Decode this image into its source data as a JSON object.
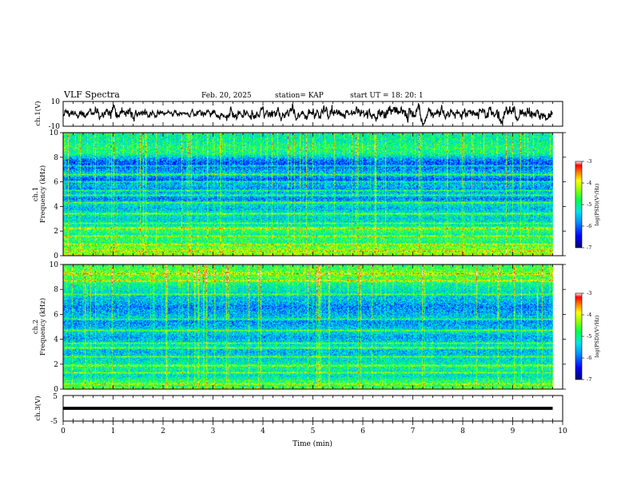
{
  "header": {
    "title": "VLF Spectra",
    "date": "Feb. 20, 2025",
    "station": "station= KAP",
    "start": "start  UT =   18: 20: 1"
  },
  "chart_data": [
    {
      "type": "line",
      "name": "ch1-waveform",
      "ylabel": "ch.1(V)",
      "ylim": [
        -10,
        10
      ],
      "yticks": [
        "10",
        "-10"
      ],
      "xlim": [
        0,
        10
      ],
      "amplitude_envelope": [
        [
          0.0,
          2.5
        ],
        [
          0.5,
          3.5
        ],
        [
          1.0,
          5.5
        ],
        [
          1.5,
          4.0
        ],
        [
          2.0,
          2.0
        ],
        [
          2.5,
          2.5
        ],
        [
          3.0,
          3.0
        ],
        [
          3.5,
          4.5
        ],
        [
          4.0,
          4.0
        ],
        [
          4.5,
          5.0
        ],
        [
          5.0,
          4.5
        ],
        [
          5.5,
          5.0
        ],
        [
          6.0,
          4.0
        ],
        [
          6.5,
          5.0
        ],
        [
          7.0,
          5.5
        ],
        [
          7.5,
          4.5
        ],
        [
          8.0,
          4.0
        ],
        [
          8.5,
          5.0
        ],
        [
          9.0,
          4.5
        ],
        [
          9.5,
          5.0
        ],
        [
          9.8,
          4.0
        ]
      ]
    },
    {
      "type": "heatmap",
      "name": "ch1-spectrogram",
      "ylabel_top": "ch.1",
      "ylabel": "Frequency (kHz)",
      "ylim": [
        0,
        10
      ],
      "yticks": [
        "0",
        "2",
        "4",
        "6",
        "8",
        "10"
      ],
      "xlim": [
        0,
        10
      ],
      "data_extent_x": [
        0,
        9.8
      ],
      "colorscale": [
        "#00007f",
        "#0000ff",
        "#00b4ff",
        "#00ffcf",
        "#00ff00",
        "#ffff00",
        "#ff8000",
        "#ff0000",
        "#ffffff"
      ],
      "colorbar": {
        "label": "log(PSD)(V²/Hz)",
        "ticks": [
          "-3",
          "-4",
          "-5",
          "-6",
          "-7"
        ],
        "range": [
          -7,
          -3
        ]
      },
      "frequency_profile": [
        [
          0.0,
          -4.2
        ],
        [
          0.3,
          -4.6
        ],
        [
          0.6,
          -4.4
        ],
        [
          1.0,
          -5.0
        ],
        [
          1.3,
          -4.8
        ],
        [
          1.7,
          -5.1
        ],
        [
          2.1,
          -4.7
        ],
        [
          2.5,
          -5.3
        ],
        [
          3.0,
          -5.4
        ],
        [
          3.4,
          -5.2
        ],
        [
          3.8,
          -5.6
        ],
        [
          4.2,
          -5.3
        ],
        [
          4.6,
          -5.9
        ],
        [
          5.0,
          -5.5
        ],
        [
          5.4,
          -5.8
        ],
        [
          5.8,
          -5.6
        ],
        [
          6.2,
          -6.1
        ],
        [
          6.6,
          -5.5
        ],
        [
          7.0,
          -5.8
        ],
        [
          7.4,
          -6.2
        ],
        [
          7.8,
          -5.9
        ],
        [
          8.3,
          -5.0
        ],
        [
          8.8,
          -4.9
        ],
        [
          9.3,
          -5.1
        ],
        [
          10.0,
          -5.1
        ]
      ],
      "line_frequencies": [
        0.3,
        0.9,
        1.6,
        2.2,
        2.6,
        3.4,
        4.3,
        4.9,
        5.3,
        6.0,
        6.6,
        7.3
      ]
    },
    {
      "type": "heatmap",
      "name": "ch2-spectrogram",
      "ylabel_top": "ch.2",
      "ylabel": "Frequency (kHz)",
      "ylim": [
        0,
        10
      ],
      "yticks": [
        "0",
        "2",
        "4",
        "6",
        "8",
        "10"
      ],
      "xlim": [
        0,
        10
      ],
      "data_extent_x": [
        0,
        9.8
      ],
      "colorscale": [
        "#00007f",
        "#0000ff",
        "#00b4ff",
        "#00ffcf",
        "#00ff00",
        "#ffff00",
        "#ff8000",
        "#ff0000",
        "#ffffff"
      ],
      "colorbar": {
        "label": "log(PSD)(V²/Hz)",
        "ticks": [
          "-3",
          "-4",
          "-5",
          "-6",
          "-7"
        ],
        "range": [
          -7,
          -3
        ]
      },
      "frequency_profile": [
        [
          0.0,
          -4.5
        ],
        [
          0.3,
          -4.9
        ],
        [
          0.6,
          -4.8
        ],
        [
          1.0,
          -5.3
        ],
        [
          1.4,
          -5.2
        ],
        [
          1.8,
          -5.0
        ],
        [
          2.2,
          -5.3
        ],
        [
          2.6,
          -5.4
        ],
        [
          3.0,
          -5.6
        ],
        [
          3.4,
          -5.2
        ],
        [
          3.8,
          -5.5
        ],
        [
          4.2,
          -5.7
        ],
        [
          4.6,
          -5.3
        ],
        [
          5.0,
          -5.6
        ],
        [
          5.4,
          -5.8
        ],
        [
          5.8,
          -5.5
        ],
        [
          6.2,
          -5.7
        ],
        [
          6.6,
          -5.9
        ],
        [
          7.0,
          -5.6
        ],
        [
          7.4,
          -5.5
        ],
        [
          7.8,
          -5.3
        ],
        [
          8.3,
          -5.1
        ],
        [
          8.8,
          -4.7
        ],
        [
          9.3,
          -4.5
        ],
        [
          10.0,
          -4.8
        ]
      ],
      "line_frequencies": [
        0.4,
        1.3,
        1.9,
        2.6,
        3.3,
        3.7,
        4.7,
        5.6,
        7.6,
        8.7,
        9.3
      ]
    },
    {
      "type": "line",
      "name": "ch3-signal",
      "ylabel": "ch.3(V)",
      "ylim": [
        -5,
        5
      ],
      "yticks": [
        "5",
        "-5"
      ],
      "xlim": [
        0,
        10
      ],
      "xlabel": "Time  (min)",
      "xticks": [
        "0",
        "1",
        "2",
        "3",
        "4",
        "5",
        "6",
        "7",
        "8",
        "9",
        "10"
      ],
      "band_values": [
        -0.6,
        0.6
      ],
      "band_extent_x": [
        0,
        9.8
      ]
    }
  ]
}
